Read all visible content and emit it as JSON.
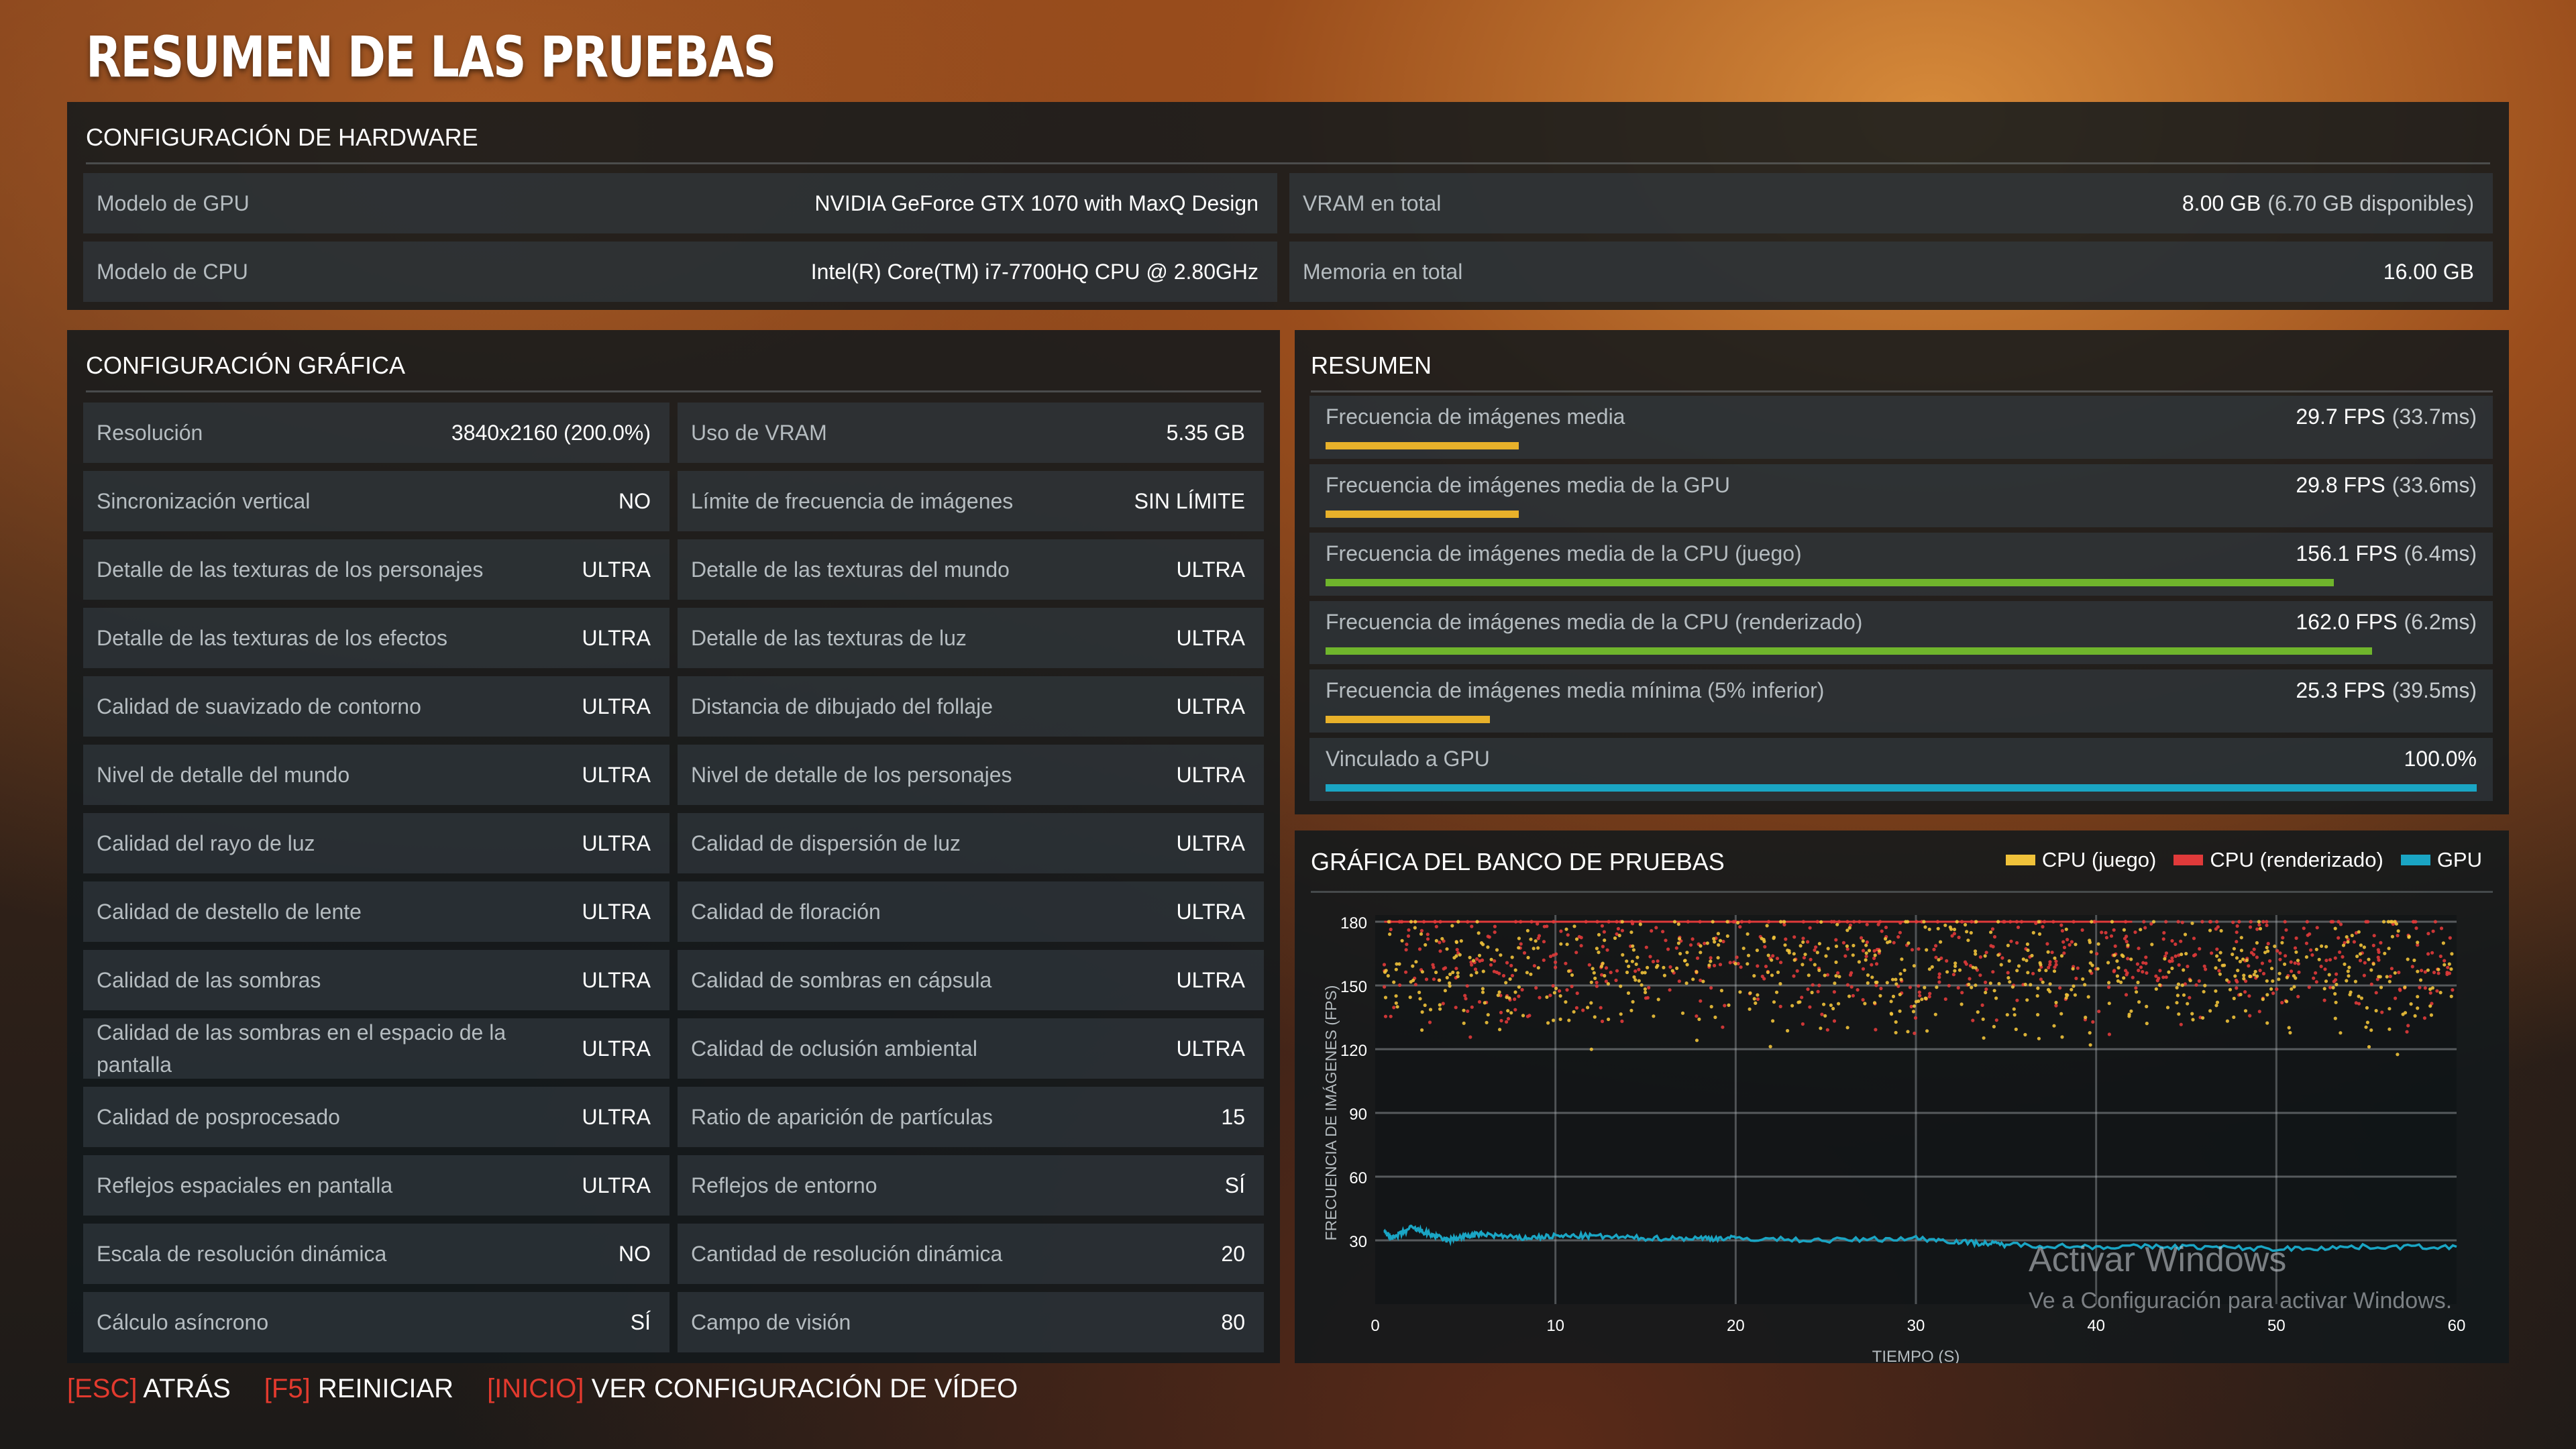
{
  "title": "RESUMEN DE LAS PRUEBAS",
  "hardware": {
    "heading": "CONFIGURACIÓN DE HARDWARE",
    "gpu_label": "Modelo de GPU",
    "gpu_value": "NVIDIA GeForce GTX 1070 with MaxQ Design",
    "cpu_label": "Modelo de CPU",
    "cpu_value": "Intel(R) Core(TM) i7-7700HQ CPU @ 2.80GHz",
    "vram_label": "VRAM en total",
    "vram_value": "8.00 GB",
    "vram_sub": "(6.70 GB disponibles)",
    "mem_label": "Memoria en total",
    "mem_value": "16.00 GB"
  },
  "graphics": {
    "heading": "CONFIGURACIÓN GRÁFICA",
    "rows": [
      {
        "l": "Resolución",
        "lv": "3840x2160 (200.0%)",
        "r": "Uso de VRAM",
        "rv": "5.35 GB"
      },
      {
        "l": "Sincronización vertical",
        "lv": "NO",
        "r": "Límite de frecuencia de imágenes",
        "rv": "SIN LÍMITE"
      },
      {
        "l": "Detalle de las texturas de los personajes",
        "lv": "ULTRA",
        "r": "Detalle de las texturas del mundo",
        "rv": "ULTRA"
      },
      {
        "l": "Detalle de las texturas de los efectos",
        "lv": "ULTRA",
        "r": "Detalle de las texturas de luz",
        "rv": "ULTRA"
      },
      {
        "l": "Calidad de suavizado de contorno",
        "lv": "ULTRA",
        "r": "Distancia de dibujado del follaje",
        "rv": "ULTRA"
      },
      {
        "l": "Nivel de detalle del mundo",
        "lv": "ULTRA",
        "r": "Nivel de detalle de los personajes",
        "rv": "ULTRA"
      },
      {
        "l": "Calidad del rayo de luz",
        "lv": "ULTRA",
        "r": "Calidad de dispersión de luz",
        "rv": "ULTRA"
      },
      {
        "l": "Calidad de destello de lente",
        "lv": "ULTRA",
        "r": "Calidad de floración",
        "rv": "ULTRA"
      },
      {
        "l": "Calidad de las sombras",
        "lv": "ULTRA",
        "r": "Calidad de sombras en cápsula",
        "rv": "ULTRA"
      },
      {
        "l": "Calidad de las sombras en el espacio de la pantalla",
        "lv": "ULTRA",
        "r": "Calidad de oclusión ambiental",
        "rv": "ULTRA"
      },
      {
        "l": "Calidad de posprocesado",
        "lv": "ULTRA",
        "r": "Ratio de aparición de partículas",
        "rv": "15"
      },
      {
        "l": "Reflejos espaciales en pantalla",
        "lv": "ULTRA",
        "r": "Reflejos de entorno",
        "rv": "SÍ"
      },
      {
        "l": "Escala de resolución dinámica",
        "lv": "NO",
        "r": "Cantidad de resolución dinámica",
        "rv": "20"
      },
      {
        "l": "Cálculo asíncrono",
        "lv": "SÍ",
        "r": "Campo de visión",
        "rv": "80"
      }
    ]
  },
  "summary": {
    "heading": "RESUMEN",
    "rows": [
      {
        "label": "Frecuencia de imágenes media",
        "value": "29.7 FPS",
        "sub": "(33.7ms)",
        "bar": 0.168,
        "color": "#e8b12a"
      },
      {
        "label": "Frecuencia de imágenes media de la GPU",
        "value": "29.8 FPS",
        "sub": "(33.6ms)",
        "bar": 0.168,
        "color": "#e8b12a"
      },
      {
        "label": "Frecuencia de imágenes media de la CPU (juego)",
        "value": "156.1 FPS",
        "sub": "(6.4ms)",
        "bar": 0.876,
        "color": "#6fb52c"
      },
      {
        "label": "Frecuencia de imágenes media de la CPU (renderizado)",
        "value": "162.0 FPS",
        "sub": "(6.2ms)",
        "bar": 0.909,
        "color": "#6fb52c"
      },
      {
        "label": "Frecuencia de imágenes media mínima (5% inferior)",
        "value": "25.3 FPS",
        "sub": "(39.5ms)",
        "bar": 0.143,
        "color": "#e8b12a"
      },
      {
        "label": "Vinculado a GPU",
        "value": "100.0%",
        "sub": "",
        "bar": 1.0,
        "color": "#1aa5c4"
      }
    ]
  },
  "chart_panel": {
    "heading": "GRÁFICA DEL BANCO DE PRUEBAS",
    "legend": [
      {
        "name": "CPU (juego)",
        "color": "#f0c23a"
      },
      {
        "name": "CPU (renderizado)",
        "color": "#e03a3a"
      },
      {
        "name": "GPU",
        "color": "#1aa5c4"
      }
    ]
  },
  "chart_data": {
    "type": "scatter",
    "xlabel": "TIEMPO (S)",
    "ylabel": "FRECUENCIA DE IMÁGENES (FPS)",
    "xlim": [
      0,
      60
    ],
    "ylim": [
      0,
      180
    ],
    "x_ticks": [
      0,
      10,
      20,
      30,
      40,
      50,
      60
    ],
    "y_ticks": [
      30,
      60,
      90,
      120,
      150,
      180
    ],
    "grid": true,
    "legend_position": "top-right",
    "series": [
      {
        "name": "CPU (juego)",
        "color": "#f0c23a",
        "x_range": [
          0.5,
          60
        ],
        "y_range": [
          115,
          180
        ],
        "typical": 156
      },
      {
        "name": "CPU (renderizado)",
        "color": "#e03a3a",
        "x_range": [
          0.5,
          60
        ],
        "y_range": [
          120,
          180
        ],
        "typical": 162
      },
      {
        "name": "GPU",
        "color": "#1aa5c4",
        "type": "line",
        "x": [
          0.5,
          1,
          2,
          3,
          4,
          5,
          6,
          8,
          10,
          12,
          15,
          18,
          20,
          25,
          30,
          33,
          35,
          40,
          45,
          50,
          55,
          60
        ],
        "y": [
          34,
          31,
          36,
          33,
          30,
          32,
          33,
          31,
          32,
          32,
          31,
          31,
          31,
          30,
          31,
          29,
          28,
          27,
          27,
          26,
          27,
          27
        ]
      }
    ]
  },
  "bottom": {
    "esc_key": "[ESC]",
    "esc_label": "ATRÁS",
    "f5_key": "[F5]",
    "f5_label": "REINICIAR",
    "home_key": "[INICIO]",
    "home_label": "VER CONFIGURACIÓN DE VÍDEO"
  },
  "watermark": {
    "line1": "Activar Windows",
    "line2": "Ve a Configuración para activar Windows."
  }
}
